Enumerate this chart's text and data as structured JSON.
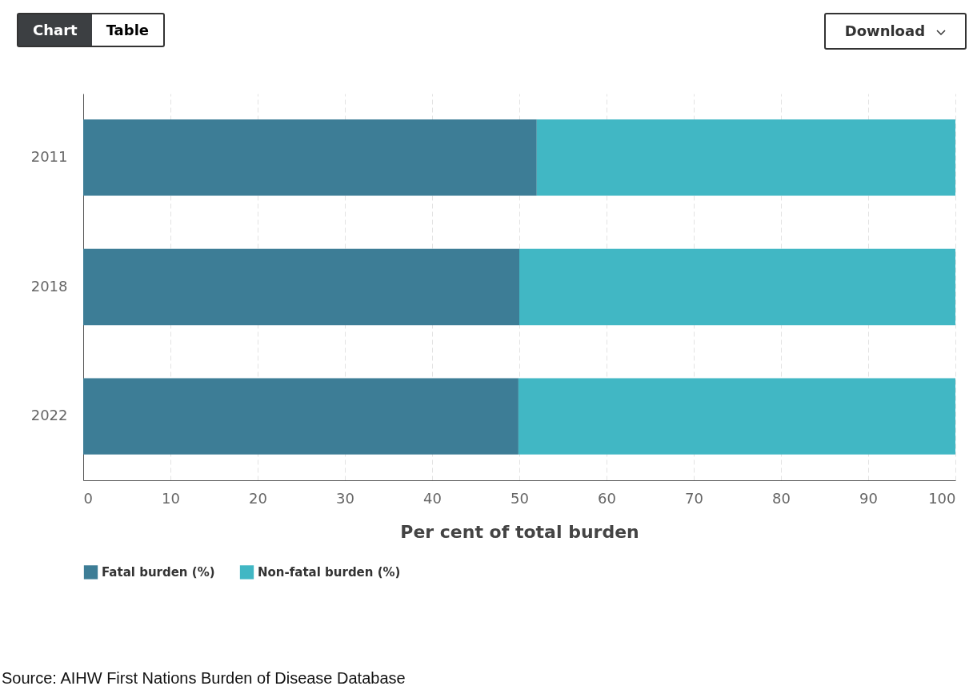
{
  "chart_data": {
    "type": "bar",
    "orientation": "horizontal",
    "stacked": true,
    "categories": [
      "2011",
      "2018",
      "2022"
    ],
    "series": [
      {
        "name": "Fatal burden (%)",
        "color": "#3d7d96",
        "values": [
          52.0,
          50.0,
          49.9
        ]
      },
      {
        "name": "Non-fatal burden (%)",
        "color": "#41b7c4",
        "values": [
          48.0,
          50.0,
          50.1
        ]
      }
    ],
    "xlabel": "Per cent of total burden",
    "xlim": [
      0,
      100
    ],
    "xticks": [
      0,
      10,
      20,
      30,
      40,
      50,
      60,
      70,
      80,
      90,
      100
    ],
    "grid": "x",
    "legend": "bottom",
    "annotations": [
      "Chart",
      "Table",
      "Download",
      "Source: AIHW First Nations Burden of Disease Database"
    ]
  }
}
